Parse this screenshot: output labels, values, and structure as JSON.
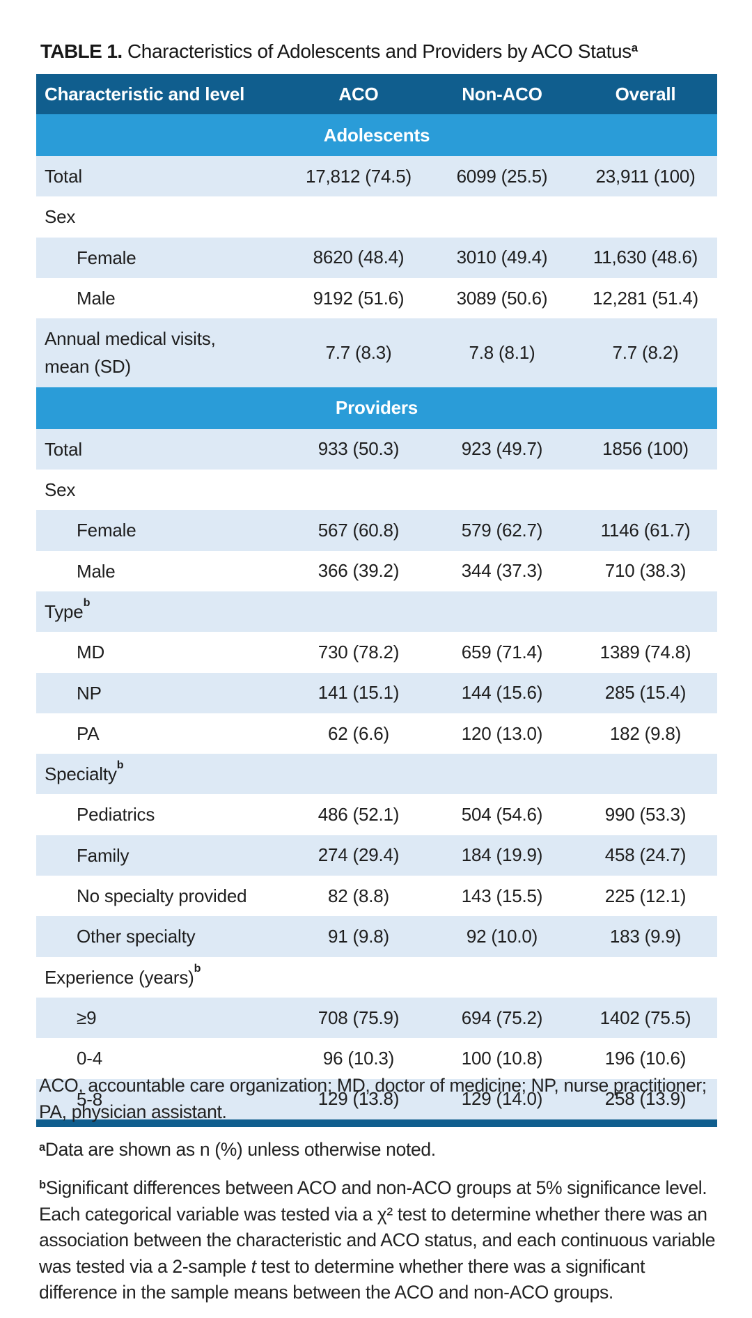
{
  "title": {
    "label": "TABLE 1.",
    "text": " Characteristics of Adolescents and Providers by ACO Status",
    "sup": "a"
  },
  "colors": {
    "header_bg": "#105e8e",
    "band_bg": "#2a9cd8",
    "row_shaded_bg": "#dde9f5",
    "header_text": "#ffffff",
    "body_text": "#1e1e1e"
  },
  "table": {
    "columns": [
      "Characteristic and level",
      "ACO",
      "Non-ACO",
      "Overall"
    ],
    "rows": [
      {
        "type": "section",
        "label": "Adolescents"
      },
      {
        "type": "data",
        "label": "Total",
        "indent": false,
        "shaded": true,
        "values": [
          "17,812 (74.5)",
          "6099 (25.5)",
          "23,911 (100)"
        ]
      },
      {
        "type": "data",
        "label": "Sex",
        "indent": false,
        "shaded": false,
        "values": [
          "",
          "",
          ""
        ]
      },
      {
        "type": "data",
        "label": "Female",
        "indent": true,
        "shaded": true,
        "values": [
          "8620 (48.4)",
          "3010 (49.4)",
          "11,630 (48.6)"
        ]
      },
      {
        "type": "data",
        "label": "Male",
        "indent": true,
        "shaded": false,
        "values": [
          "9192 (51.6)",
          "3089 (50.6)",
          "12,281 (51.4)"
        ]
      },
      {
        "type": "data",
        "label": "Annual medical visits,\nmean (SD)",
        "indent": false,
        "shaded": true,
        "values": [
          "7.7 (8.3)",
          "7.8 (8.1)",
          "7.7 (8.2)"
        ]
      },
      {
        "type": "section",
        "label": "Providers"
      },
      {
        "type": "data",
        "label": "Total",
        "indent": false,
        "shaded": true,
        "values": [
          "933 (50.3)",
          "923 (49.7)",
          "1856 (100)"
        ]
      },
      {
        "type": "data",
        "label": "Sex",
        "indent": false,
        "shaded": false,
        "values": [
          "",
          "",
          ""
        ]
      },
      {
        "type": "data",
        "label": "Female",
        "indent": true,
        "shaded": true,
        "values": [
          "567 (60.8)",
          "579 (62.7)",
          "1146 (61.7)"
        ]
      },
      {
        "type": "data",
        "label": "Male",
        "indent": true,
        "shaded": false,
        "values": [
          "366 (39.2)",
          "344 (37.3)",
          "710 (38.3)"
        ]
      },
      {
        "type": "data",
        "label": "Type",
        "sup": "b",
        "indent": false,
        "shaded": true,
        "values": [
          "",
          "",
          ""
        ]
      },
      {
        "type": "data",
        "label": "MD",
        "indent": true,
        "shaded": false,
        "values": [
          "730 (78.2)",
          "659 (71.4)",
          "1389 (74.8)"
        ]
      },
      {
        "type": "data",
        "label": "NP",
        "indent": true,
        "shaded": true,
        "values": [
          "141 (15.1)",
          "144 (15.6)",
          "285 (15.4)"
        ]
      },
      {
        "type": "data",
        "label": "PA",
        "indent": true,
        "shaded": false,
        "values": [
          "62 (6.6)",
          "120 (13.0)",
          "182 (9.8)"
        ]
      },
      {
        "type": "data",
        "label": "Specialty",
        "sup": "b",
        "indent": false,
        "shaded": true,
        "values": [
          "",
          "",
          ""
        ]
      },
      {
        "type": "data",
        "label": "Pediatrics",
        "indent": true,
        "shaded": false,
        "values": [
          "486 (52.1)",
          "504 (54.6)",
          "990 (53.3)"
        ]
      },
      {
        "type": "data",
        "label": "Family",
        "indent": true,
        "shaded": true,
        "values": [
          "274 (29.4)",
          "184 (19.9)",
          "458 (24.7)"
        ]
      },
      {
        "type": "data",
        "label": "No specialty provided",
        "indent": true,
        "shaded": false,
        "values": [
          "82 (8.8)",
          "143 (15.5)",
          "225 (12.1)"
        ]
      },
      {
        "type": "data",
        "label": "Other specialty",
        "indent": true,
        "shaded": true,
        "values": [
          "91 (9.8)",
          "92 (10.0)",
          "183 (9.9)"
        ]
      },
      {
        "type": "data",
        "label": "Experience (years)",
        "sup": "b",
        "indent": false,
        "shaded": false,
        "values": [
          "",
          "",
          ""
        ]
      },
      {
        "type": "data",
        "label": "≥9",
        "indent": true,
        "shaded": true,
        "values": [
          "708 (75.9)",
          "694 (75.2)",
          "1402 (75.5)"
        ]
      },
      {
        "type": "data",
        "label": "0-4",
        "indent": true,
        "shaded": false,
        "values": [
          "96 (10.3)",
          "100 (10.8)",
          "196 (10.6)"
        ]
      },
      {
        "type": "data",
        "label": "5-8",
        "indent": true,
        "shaded": true,
        "values": [
          "129 (13.8)",
          "129 (14.0)",
          "258 (13.9)"
        ]
      }
    ]
  },
  "footnotes": {
    "abbreviations": "ACO, accountable care organization; MD, doctor of medicine; NP, nurse practitioner; PA, physician assistant.",
    "a_sup": "a",
    "a_text": "Data are shown as n (%) unless otherwise noted.",
    "b_sup": "b",
    "b_text_1": "Significant differences between ACO and non-ACO groups at 5% significance level. Each categorical variable was tested via a χ² test to determine whether there was an association between the characteristic and ACO status, and each continuous variable was tested via a 2-sample ",
    "b_italic": "t",
    "b_text_2": " test to determine whether there was a significant difference in the sample means between the ACO and non-ACO groups."
  }
}
